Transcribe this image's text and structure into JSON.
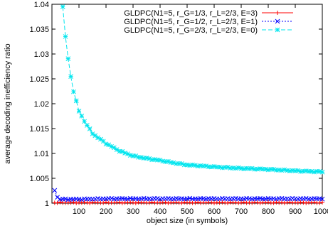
{
  "chart_data": {
    "type": "line",
    "xlabel": "object size (in symbols)",
    "ylabel": "average decoding inefficiency ratio",
    "xlim": [
      0,
      1000
    ],
    "ylim": [
      1,
      1.04
    ],
    "x_ticks": [
      100,
      200,
      300,
      400,
      500,
      600,
      700,
      800,
      900,
      1000
    ],
    "y_ticks": [
      1,
      1.005,
      1.01,
      1.015,
      1.02,
      1.025,
      1.03,
      1.035,
      1.04
    ],
    "x_tick_labels": [
      "100",
      "200",
      "300",
      "400",
      "500",
      "600",
      "700",
      "800",
      "900",
      "1000"
    ],
    "y_tick_labels": [
      "1",
      "1.005",
      "1.01",
      "1.015",
      "1.02",
      "1.025",
      "1.03",
      "1.035",
      "1.04"
    ],
    "grid": false,
    "legend_position": "top-right",
    "x_sampling": {
      "start": 10,
      "end": 1000,
      "step": 10
    },
    "series": [
      {
        "name": "GLDPC(N1=5, r_G=1/3, r_L=2/3, E=3)",
        "color": "#ff0000",
        "marker": "plus",
        "dash": "solid",
        "x": [
          10,
          100,
          200,
          300,
          400,
          500,
          600,
          700,
          800,
          900,
          1000
        ],
        "y": [
          1.0001,
          1.0001,
          1.0001,
          1.0001,
          1.0001,
          1.0001,
          1.0001,
          1.0001,
          1.0001,
          1.0001,
          1.0001
        ]
      },
      {
        "name": "GLDPC(N1=5, r_G=1/2, r_L=2/3, E=1)",
        "color": "#0000ff",
        "marker": "cross",
        "dash": "dotted",
        "x": [
          10,
          20,
          30,
          40,
          100,
          200,
          300,
          400,
          500,
          600,
          700,
          800,
          900,
          1000
        ],
        "y": [
          1.0026,
          1.0012,
          1.0008,
          1.0008,
          1.0008,
          1.0009,
          1.0009,
          1.0009,
          1.0009,
          1.0009,
          1.0009,
          1.0009,
          1.0009,
          1.0009
        ]
      },
      {
        "name": "GLDPC(N1=5, r_G=2/3, r_L=2/3, E=0)",
        "color": "#00e5ee",
        "marker": "star",
        "dash": "dashed",
        "x": [
          40,
          50,
          60,
          70,
          80,
          90,
          100,
          120,
          150,
          200,
          250,
          300,
          350,
          400,
          450,
          500,
          600,
          700,
          800,
          900,
          1000
        ],
        "y": [
          1.0395,
          1.0335,
          1.029,
          1.0255,
          1.0225,
          1.0205,
          1.0185,
          1.0165,
          1.014,
          1.012,
          1.0105,
          1.0095,
          1.009,
          1.0086,
          1.0081,
          1.0077,
          1.0073,
          1.007,
          1.0068,
          1.0065,
          1.0063
        ]
      }
    ]
  }
}
